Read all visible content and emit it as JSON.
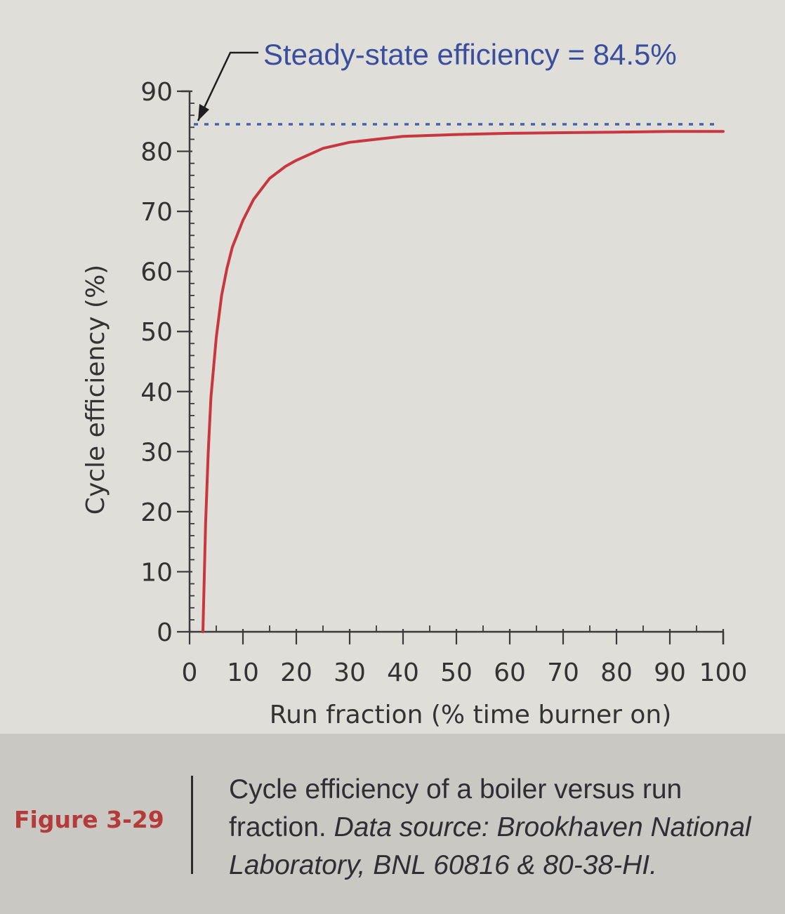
{
  "chart_data": {
    "type": "line",
    "title": "",
    "xlabel": "Run fraction (% time burner on)",
    "ylabel": "Cycle efficiency (%)",
    "xlim": [
      0,
      100
    ],
    "ylim": [
      0,
      90
    ],
    "x_ticks": [
      "0",
      "10",
      "20",
      "30",
      "40",
      "50",
      "60",
      "70",
      "80",
      "90",
      "100"
    ],
    "y_ticks": [
      "0",
      "10",
      "20",
      "30",
      "40",
      "50",
      "60",
      "70",
      "80",
      "90"
    ],
    "series": [
      {
        "color": "#c8373f",
        "x": [
          2.5,
          3,
          3.5,
          4,
          5,
          6,
          7,
          8,
          10,
          12,
          15,
          18,
          20,
          25,
          30,
          35,
          40,
          50,
          60,
          70,
          80,
          90,
          100
        ],
        "y": [
          0,
          18,
          30,
          39,
          49,
          56,
          60.5,
          64,
          68.5,
          72,
          75.5,
          77.5,
          78.5,
          80.5,
          81.5,
          82,
          82.5,
          82.8,
          83,
          83.1,
          83.2,
          83.3,
          83.3
        ]
      }
    ],
    "reference_line": {
      "y": 84.5,
      "style": "dashed",
      "color": "#4a60a8",
      "label": "Steady-state efficiency = 84.5%"
    },
    "colors": {
      "curve": "#c8373f",
      "reference": "#4a60a8",
      "annotation_text": "#3b4e9e",
      "axis": "#3a3a3a"
    },
    "grid": false
  },
  "caption": {
    "figure_label": "Figure 3-29",
    "text": "Cycle efficiency of a boiler versus run fraction.",
    "source": "Data source: Brookhaven National Laboratory, BNL 60816 & 80-38-HI."
  }
}
